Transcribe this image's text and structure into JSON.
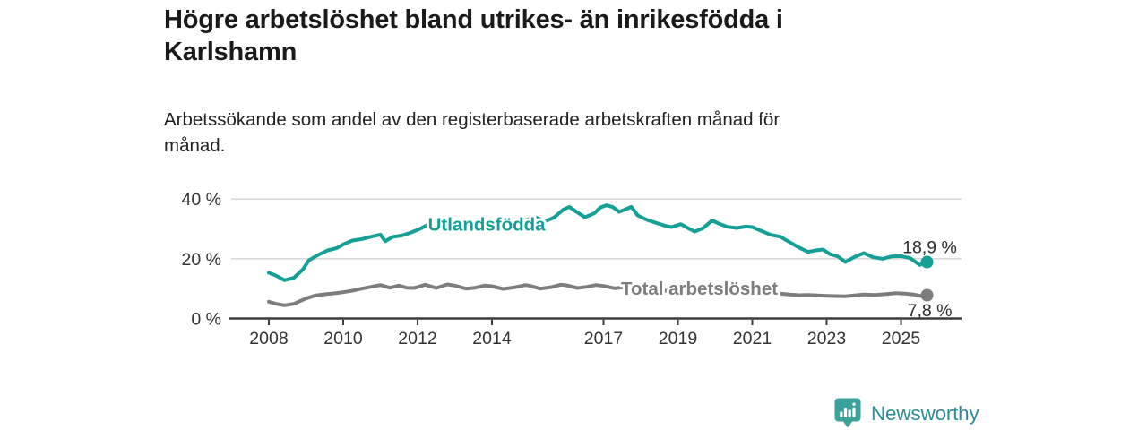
{
  "header": {
    "title_line1": "Högre arbetslöshet bland utrikes- än inrikesfödda i",
    "title_line2": "Karlshamn",
    "subtitle_line1": "Arbetssökande som andel av den registerbaserade arbetskraften månad för",
    "subtitle_line2": "månad."
  },
  "footer": {
    "brand": "Newsworthy"
  },
  "colors": {
    "teal_line": "#14a096",
    "gray_line": "#7d7d7d",
    "grid": "#d9d9d9",
    "axis": "#3d3d3d",
    "axis_text": "#333333",
    "annotation_text": "#2b2b2b",
    "logo_icon": "#3aa29b",
    "logo_text": "#2f8b98",
    "background": "#ffffff"
  },
  "chart_data": {
    "type": "line",
    "title": "Högre arbetslöshet bland utrikes- än inrikesfödda i Karlshamn",
    "subtitle": "Arbetssökande som andel av den registerbaserade arbetskraften månad för månad.",
    "xlabel": "",
    "ylabel": "",
    "grid": "horizontal",
    "legend_position": "inline-labels",
    "x_ticks": [
      2008,
      2010,
      2012,
      2014,
      2017,
      2019,
      2021,
      2023,
      2025
    ],
    "y_ticks": [
      0,
      20,
      40
    ],
    "y_tick_labels": [
      "0 %",
      "20 %",
      "40 %"
    ],
    "xlim": [
      2007.5,
      2026.4
    ],
    "ylim": [
      0,
      42
    ],
    "series": [
      {
        "name": "Utlandsfödda",
        "color": "#14a096",
        "end_label": "18,9 %",
        "end_value": 18.9,
        "label_x_year": 2012.28,
        "label_y_pct": 31.5,
        "points": [
          [
            2008.0,
            15.3
          ],
          [
            2008.17,
            14.5
          ],
          [
            2008.42,
            12.8
          ],
          [
            2008.67,
            13.6
          ],
          [
            2008.92,
            16.5
          ],
          [
            2009.08,
            19.5
          ],
          [
            2009.33,
            21.3
          ],
          [
            2009.58,
            22.8
          ],
          [
            2009.83,
            23.6
          ],
          [
            2010.0,
            24.8
          ],
          [
            2010.25,
            26.1
          ],
          [
            2010.5,
            26.6
          ],
          [
            2010.75,
            27.4
          ],
          [
            2011.0,
            28.1
          ],
          [
            2011.13,
            25.9
          ],
          [
            2011.33,
            27.3
          ],
          [
            2011.58,
            27.8
          ],
          [
            2011.83,
            28.8
          ],
          [
            2012.08,
            30.1
          ],
          [
            2012.25,
            31.3
          ],
          [
            2012.5,
            29.4
          ],
          [
            2012.75,
            30.4
          ],
          [
            2013.0,
            32.0
          ],
          [
            2013.25,
            30.7
          ],
          [
            2013.5,
            30.3
          ],
          [
            2013.75,
            30.2
          ],
          [
            2014.0,
            30.4
          ],
          [
            2014.25,
            30.9
          ],
          [
            2014.5,
            31.3
          ],
          [
            2014.75,
            32.1
          ],
          [
            2015.0,
            33.4
          ],
          [
            2015.17,
            33.9
          ],
          [
            2015.42,
            32.5
          ],
          [
            2015.67,
            33.8
          ],
          [
            2015.92,
            36.5
          ],
          [
            2016.08,
            37.4
          ],
          [
            2016.25,
            35.9
          ],
          [
            2016.5,
            33.9
          ],
          [
            2016.75,
            35.2
          ],
          [
            2016.92,
            37.2
          ],
          [
            2017.08,
            37.9
          ],
          [
            2017.25,
            37.3
          ],
          [
            2017.42,
            35.7
          ],
          [
            2017.58,
            36.5
          ],
          [
            2017.75,
            37.4
          ],
          [
            2017.92,
            34.5
          ],
          [
            2018.17,
            33.0
          ],
          [
            2018.42,
            32.0
          ],
          [
            2018.67,
            31.0
          ],
          [
            2018.83,
            30.6
          ],
          [
            2019.08,
            31.6
          ],
          [
            2019.25,
            30.4
          ],
          [
            2019.45,
            29.1
          ],
          [
            2019.67,
            30.2
          ],
          [
            2019.92,
            32.8
          ],
          [
            2020.08,
            31.9
          ],
          [
            2020.33,
            30.7
          ],
          [
            2020.58,
            30.3
          ],
          [
            2020.83,
            30.8
          ],
          [
            2021.0,
            30.6
          ],
          [
            2021.25,
            29.3
          ],
          [
            2021.5,
            28.0
          ],
          [
            2021.75,
            27.4
          ],
          [
            2022.0,
            25.6
          ],
          [
            2022.25,
            23.8
          ],
          [
            2022.5,
            22.3
          ],
          [
            2022.7,
            22.8
          ],
          [
            2022.9,
            23.1
          ],
          [
            2023.1,
            21.5
          ],
          [
            2023.3,
            20.8
          ],
          [
            2023.5,
            18.9
          ],
          [
            2023.75,
            20.6
          ],
          [
            2024.0,
            21.9
          ],
          [
            2024.25,
            20.5
          ],
          [
            2024.5,
            20.0
          ],
          [
            2024.75,
            20.8
          ],
          [
            2025.0,
            20.9
          ],
          [
            2025.25,
            20.2
          ],
          [
            2025.5,
            17.9
          ],
          [
            2025.7,
            18.9
          ]
        ]
      },
      {
        "name": "Total arbetslöshet",
        "color": "#7d7d7d",
        "end_label": "7,8 %",
        "end_value": 7.8,
        "label_x_year": 2017.47,
        "label_y_pct": 10.1,
        "points": [
          [
            2008.0,
            5.6
          ],
          [
            2008.2,
            4.9
          ],
          [
            2008.42,
            4.4
          ],
          [
            2008.67,
            4.9
          ],
          [
            2009.0,
            6.7
          ],
          [
            2009.25,
            7.7
          ],
          [
            2009.5,
            8.1
          ],
          [
            2009.75,
            8.4
          ],
          [
            2010.0,
            8.8
          ],
          [
            2010.25,
            9.3
          ],
          [
            2010.5,
            10.0
          ],
          [
            2010.75,
            10.6
          ],
          [
            2011.0,
            11.2
          ],
          [
            2011.25,
            10.3
          ],
          [
            2011.5,
            11.0
          ],
          [
            2011.7,
            10.3
          ],
          [
            2011.9,
            10.2
          ],
          [
            2012.0,
            10.5
          ],
          [
            2012.2,
            11.3
          ],
          [
            2012.5,
            10.2
          ],
          [
            2012.8,
            11.4
          ],
          [
            2013.0,
            11.0
          ],
          [
            2013.3,
            10.0
          ],
          [
            2013.55,
            10.3
          ],
          [
            2013.8,
            11.0
          ],
          [
            2014.0,
            10.8
          ],
          [
            2014.3,
            9.9
          ],
          [
            2014.6,
            10.4
          ],
          [
            2014.9,
            11.2
          ],
          [
            2015.0,
            11.0
          ],
          [
            2015.3,
            10.0
          ],
          [
            2015.6,
            10.5
          ],
          [
            2015.85,
            11.3
          ],
          [
            2016.0,
            11.1
          ],
          [
            2016.3,
            10.2
          ],
          [
            2016.55,
            10.6
          ],
          [
            2016.8,
            11.2
          ],
          [
            2017.0,
            10.9
          ],
          [
            2017.3,
            10.1
          ],
          [
            2017.5,
            10.4
          ],
          [
            2017.75,
            10.1
          ],
          [
            2018.0,
            9.9
          ],
          [
            2018.5,
            9.4
          ],
          [
            2019.0,
            9.0
          ],
          [
            2019.5,
            8.7
          ],
          [
            2020.0,
            9.0
          ],
          [
            2020.3,
            9.7
          ],
          [
            2020.6,
            9.8
          ],
          [
            2021.0,
            9.2
          ],
          [
            2021.5,
            8.6
          ],
          [
            2022.0,
            8.0
          ],
          [
            2022.25,
            7.8
          ],
          [
            2022.5,
            7.9
          ],
          [
            2022.75,
            7.7
          ],
          [
            2023.0,
            7.6
          ],
          [
            2023.25,
            7.5
          ],
          [
            2023.5,
            7.4
          ],
          [
            2023.75,
            7.7
          ],
          [
            2024.0,
            8.0
          ],
          [
            2024.3,
            7.9
          ],
          [
            2024.6,
            8.2
          ],
          [
            2024.85,
            8.5
          ],
          [
            2025.1,
            8.3
          ],
          [
            2025.35,
            8.0
          ],
          [
            2025.55,
            7.5
          ],
          [
            2025.7,
            7.8
          ]
        ]
      }
    ]
  }
}
